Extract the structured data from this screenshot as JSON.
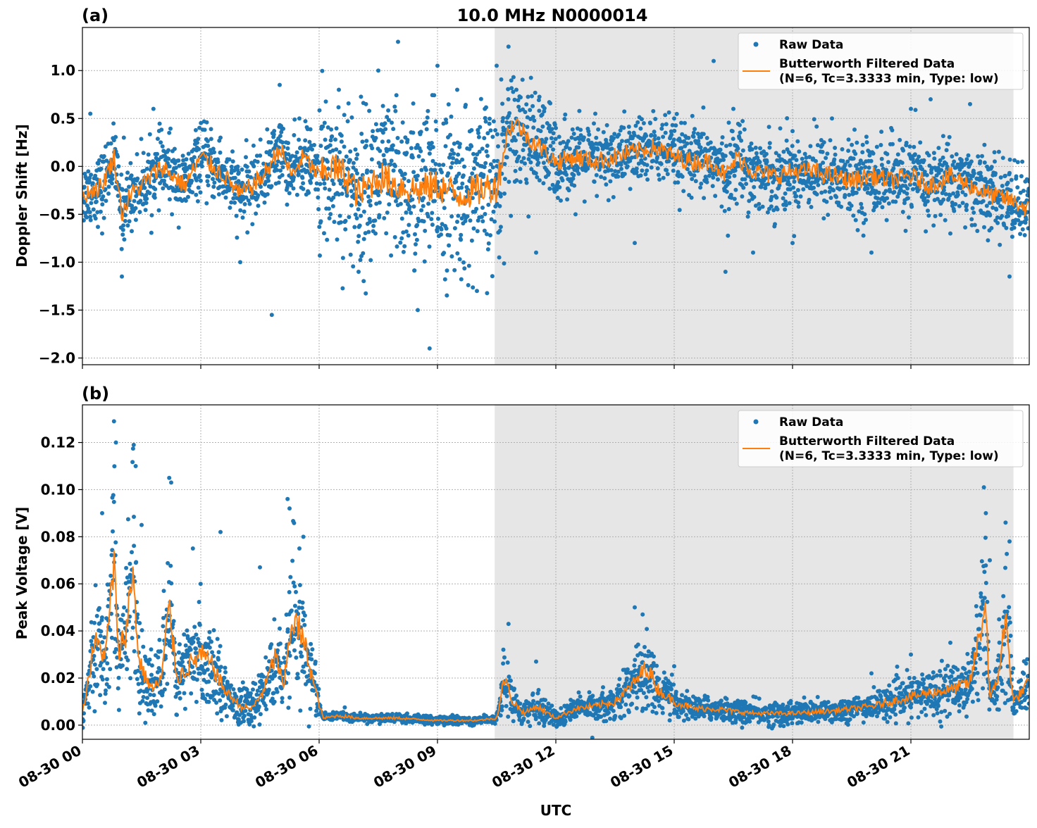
{
  "title": "10.0 MHz N0000014",
  "xlabel": "UTC",
  "colors": {
    "raw": "#1f77b4",
    "filtered": "#ff7f0e",
    "shade": "#e6e6e6"
  },
  "panels": [
    {
      "id": "a",
      "label": "(a)",
      "ylabel": "Doppler Shift [Hz]",
      "legend": {
        "raw": "Raw Data",
        "filtered_line1": "Butterworth Filtered Data",
        "filtered_line2": "(N=6, Tc=3.3333 min, Type: low)"
      }
    },
    {
      "id": "b",
      "label": "(b)",
      "ylabel": "Peak Voltage [V]",
      "legend": {
        "raw": "Raw Data",
        "filtered_line1": "Butterworth Filtered Data",
        "filtered_line2": "(N=6, Tc=3.3333 min, Type: low)"
      }
    }
  ],
  "chart_data": [
    {
      "type": "scatter",
      "panel": "(a)",
      "title": "10.0 MHz N0000014",
      "xlabel": "",
      "ylabel": "Doppler Shift [Hz]",
      "xlim": [
        0,
        24
      ],
      "ylim": [
        -2.07,
        1.45
      ],
      "x_ticks": [
        0,
        3,
        6,
        9,
        12,
        15,
        18,
        21
      ],
      "y_ticks": [
        -2.0,
        -1.5,
        -1.0,
        -0.5,
        0.0,
        0.5,
        1.0
      ],
      "y_tick_labels": [
        "−2.0",
        "−1.5",
        "−1.0",
        "−0.5",
        "0.0",
        "0.5",
        "1.0"
      ],
      "shaded_region_hours": [
        10.45,
        23.6
      ],
      "grid": true,
      "legend_position": "top-right",
      "series": [
        {
          "name": "Butterworth Filtered Data\n(N=6, Tc=3.3333 min, Type: low)",
          "x": [
            0,
            0.5,
            0.8,
            1.0,
            1.2,
            1.5,
            2.0,
            2.3,
            2.6,
            3.0,
            3.3,
            3.6,
            4.0,
            4.3,
            4.6,
            5.0,
            5.3,
            5.6,
            6.0,
            6.3,
            6.7,
            7.0,
            7.5,
            8.0,
            8.5,
            9.0,
            9.5,
            10.0,
            10.5,
            10.8,
            11.0,
            11.3,
            11.6,
            12.0,
            12.5,
            13.0,
            13.5,
            14.0,
            14.5,
            15.0,
            15.5,
            16.0,
            16.3,
            16.6,
            17.0,
            17.5,
            18.0,
            18.5,
            19.0,
            19.5,
            20.0,
            20.5,
            21.0,
            21.5,
            22.0,
            22.5,
            23.0,
            23.5,
            24.0
          ],
          "y": [
            -0.3,
            -0.2,
            0.1,
            -0.5,
            -0.3,
            -0.2,
            0.0,
            -0.1,
            -0.2,
            0.1,
            0.0,
            -0.1,
            -0.3,
            -0.2,
            -0.1,
            0.2,
            -0.1,
            0.1,
            -0.1,
            0.0,
            -0.1,
            -0.3,
            -0.1,
            -0.2,
            -0.25,
            -0.2,
            -0.3,
            -0.25,
            -0.2,
            0.4,
            0.45,
            0.3,
            0.2,
            0.05,
            0.1,
            0.05,
            0.1,
            0.15,
            0.2,
            0.1,
            0.05,
            0.05,
            -0.1,
            0.1,
            -0.05,
            -0.1,
            -0.05,
            -0.05,
            -0.1,
            -0.15,
            -0.1,
            -0.15,
            -0.1,
            -0.2,
            -0.1,
            -0.2,
            -0.3,
            -0.35,
            -0.45
          ]
        },
        {
          "name": "Raw Data",
          "x": [
            0.2,
            0.5,
            1.0,
            1.05,
            1.8,
            2.2,
            3.5,
            4.0,
            4.8,
            5.0,
            5.5,
            6.5,
            7.0,
            7.5,
            8.0,
            8.5,
            8.8,
            9.0,
            9.5,
            10.0,
            10.2,
            10.5,
            10.8,
            11.0,
            11.5,
            12.0,
            12.5,
            13.0,
            14.0,
            15.0,
            16.0,
            16.3,
            16.5,
            17.0,
            18.0,
            19.0,
            20.0,
            20.5,
            21.0,
            21.5,
            22.0,
            22.5,
            23.0,
            23.5
          ],
          "y": [
            0.55,
            -0.7,
            -1.15,
            0.3,
            0.6,
            0.35,
            0.3,
            -1.0,
            -1.55,
            0.85,
            0.5,
            0.8,
            -1.1,
            1.0,
            1.3,
            -1.5,
            -1.9,
            1.05,
            0.8,
            -1.3,
            0.6,
            1.05,
            1.25,
            0.8,
            -0.9,
            0.4,
            -0.5,
            0.55,
            -0.8,
            0.5,
            1.1,
            -1.1,
            0.6,
            -0.9,
            -0.8,
            0.5,
            -0.9,
            0.4,
            0.6,
            0.7,
            -0.7,
            0.65,
            -0.5,
            -1.15
          ]
        }
      ]
    },
    {
      "type": "scatter",
      "panel": "(b)",
      "xlabel": "UTC",
      "ylabel": "Peak Voltage [V]",
      "xlim": [
        0,
        24
      ],
      "ylim": [
        -0.006,
        0.136
      ],
      "x_ticks": [
        0,
        3,
        6,
        9,
        12,
        15,
        18,
        21
      ],
      "x_tick_labels": [
        "08-30 00",
        "08-30 03",
        "08-30 06",
        "08-30 09",
        "08-30 12",
        "08-30 15",
        "08-30 18",
        "08-30 21"
      ],
      "y_ticks": [
        0.0,
        0.02,
        0.04,
        0.06,
        0.08,
        0.1,
        0.12
      ],
      "y_tick_labels": [
        "0.00",
        "0.02",
        "0.04",
        "0.06",
        "0.08",
        "0.10",
        "0.12"
      ],
      "shaded_region_hours": [
        10.45,
        23.6
      ],
      "grid": true,
      "legend_position": "top-right",
      "series": [
        {
          "name": "Butterworth Filtered Data\n(N=6, Tc=3.3333 min, Type: low)",
          "x": [
            0,
            0.3,
            0.6,
            0.8,
            0.9,
            1.1,
            1.3,
            1.4,
            1.6,
            1.8,
            2.0,
            2.2,
            2.4,
            2.7,
            3.0,
            3.3,
            3.6,
            4.0,
            4.3,
            4.6,
            4.9,
            5.1,
            5.3,
            5.5,
            5.7,
            5.9,
            6.1,
            6.5,
            7.0,
            8.0,
            9.0,
            10.0,
            10.5,
            10.7,
            10.9,
            11.2,
            11.5,
            12.0,
            12.5,
            13.0,
            13.5,
            14.0,
            14.3,
            14.6,
            15.0,
            15.5,
            16.0,
            17.0,
            18.0,
            19.0,
            20.0,
            20.5,
            21.0,
            21.5,
            22.0,
            22.5,
            22.9,
            23.0,
            23.2,
            23.4,
            23.6,
            24.0
          ],
          "y": [
            0.005,
            0.035,
            0.03,
            0.07,
            0.03,
            0.04,
            0.067,
            0.03,
            0.02,
            0.015,
            0.02,
            0.05,
            0.02,
            0.025,
            0.03,
            0.025,
            0.015,
            0.008,
            0.007,
            0.015,
            0.03,
            0.015,
            0.045,
            0.04,
            0.03,
            0.015,
            0.003,
            0.004,
            0.003,
            0.003,
            0.002,
            0.002,
            0.003,
            0.02,
            0.01,
            0.005,
            0.008,
            0.003,
            0.007,
            0.008,
            0.01,
            0.018,
            0.025,
            0.015,
            0.01,
            0.007,
            0.007,
            0.005,
            0.005,
            0.006,
            0.008,
            0.01,
            0.012,
            0.014,
            0.015,
            0.018,
            0.052,
            0.01,
            0.02,
            0.045,
            0.01,
            0.018
          ]
        },
        {
          "name": "Raw Data",
          "x": [
            0.5,
            0.8,
            0.85,
            1.3,
            1.35,
            1.5,
            2.2,
            2.25,
            2.8,
            3.5,
            4.5,
            5.2,
            5.25,
            5.5,
            5.6,
            10.8,
            11.5,
            14.0,
            14.2,
            15.0,
            20.0,
            21.0,
            22.0,
            22.85,
            22.9,
            23.0,
            23.4,
            23.5
          ],
          "y": [
            0.09,
            0.129,
            0.12,
            0.119,
            0.11,
            0.085,
            0.105,
            0.103,
            0.075,
            0.082,
            0.067,
            0.096,
            0.092,
            0.075,
            0.08,
            0.043,
            0.027,
            0.05,
            0.047,
            0.025,
            0.022,
            0.03,
            0.035,
            0.101,
            0.09,
            0.07,
            0.086,
            0.078
          ]
        }
      ]
    }
  ]
}
